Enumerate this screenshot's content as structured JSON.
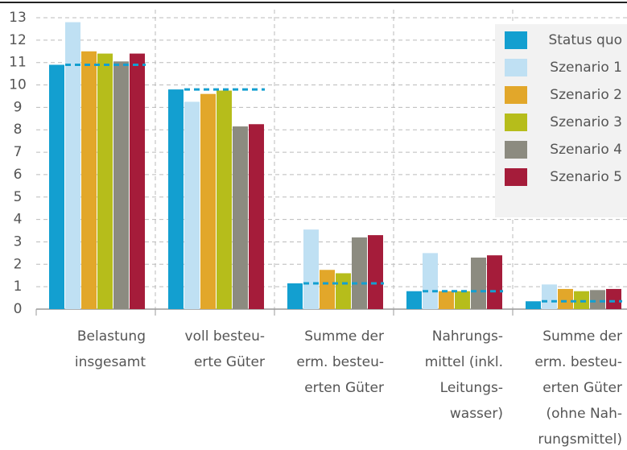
{
  "chart_data": {
    "type": "bar",
    "categories": [
      [
        "Belastung",
        "insgesamt"
      ],
      [
        "voll besteu-",
        "erte Güter"
      ],
      [
        "Summe der",
        "erm. besteu-",
        "erten Güter"
      ],
      [
        "Nahrungs-",
        "mittel (inkl.",
        "Leitungs-",
        "wasser)"
      ],
      [
        "Summe der",
        "erm. besteu-",
        "erten Güter",
        "(ohne Nah-",
        "rungsmittel)"
      ]
    ],
    "series": [
      {
        "name": "Status quo",
        "color": "#139fd0",
        "values": [
          10.9,
          9.8,
          1.15,
          0.8,
          0.35
        ]
      },
      {
        "name": "Szenario 1",
        "color": "#bfe0f3",
        "values": [
          12.8,
          9.25,
          3.55,
          2.5,
          1.1
        ]
      },
      {
        "name": "Szenario 2",
        "color": "#e2a72a",
        "values": [
          11.5,
          9.6,
          1.75,
          0.8,
          0.9
        ]
      },
      {
        "name": "Szenario 3",
        "color": "#b6bd1b",
        "values": [
          11.4,
          9.75,
          1.6,
          0.8,
          0.8
        ]
      },
      {
        "name": "Szenario 4",
        "color": "#8c8b80",
        "values": [
          11.05,
          8.15,
          3.2,
          2.3,
          0.85
        ]
      },
      {
        "name": "Szenario 5",
        "color": "#a51c3a",
        "values": [
          11.4,
          8.25,
          3.3,
          2.4,
          0.9
        ]
      }
    ],
    "ylim": [
      0,
      13
    ],
    "yticks": [
      0,
      1,
      2,
      3,
      4,
      5,
      6,
      7,
      8,
      9,
      10,
      11,
      12,
      13
    ],
    "grid": true,
    "legend": "top-right"
  }
}
